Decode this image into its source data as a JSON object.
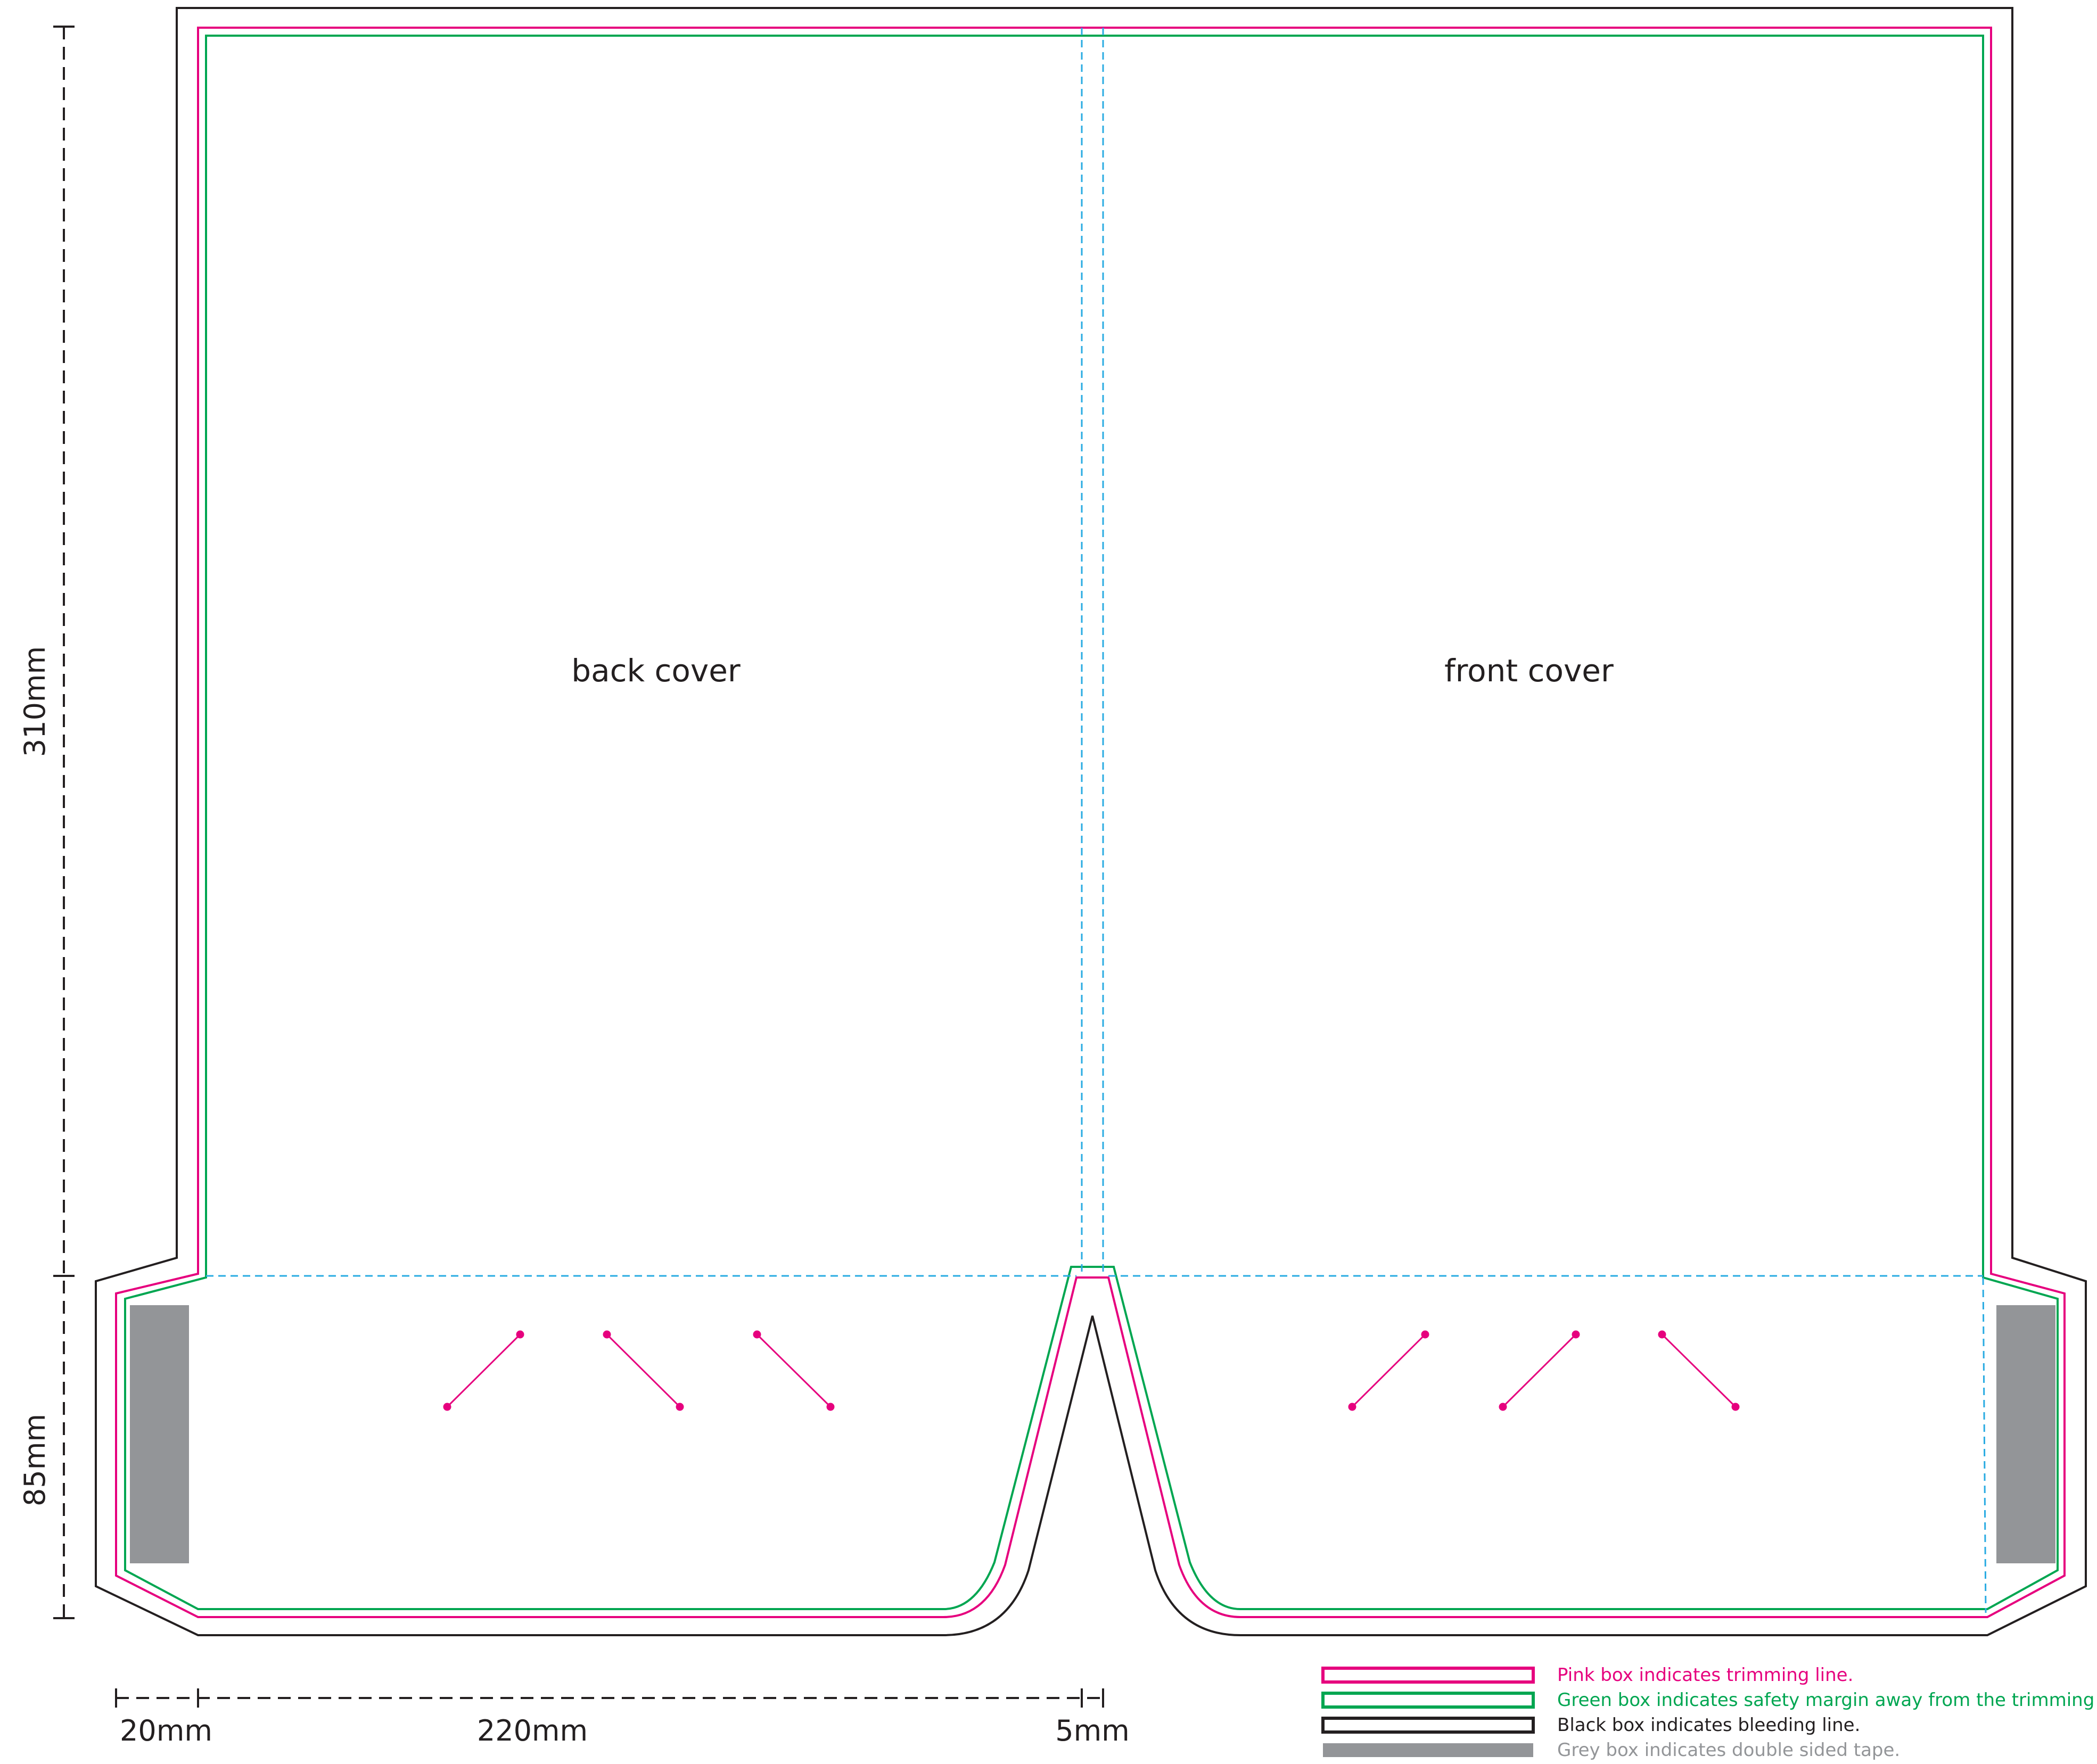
{
  "panels": {
    "back_cover": "back cover",
    "front_cover": "front cover"
  },
  "dimensions": {
    "height_main": "310mm",
    "height_pocket": "85mm",
    "width_flap": "20mm",
    "width_panel": "220mm",
    "width_spine": "5mm"
  },
  "legend": [
    {
      "text": "Pink box indicates trimming line.",
      "color": "#e6007e",
      "kind": "outline"
    },
    {
      "text": "Green box indicates safety margin away from the trimming line.",
      "color": "#00a651",
      "kind": "outline"
    },
    {
      "text": "Black box indicates bleeding line.",
      "color": "#231f20",
      "kind": "outline"
    },
    {
      "text": "Grey box indicates double sided tape.",
      "color": "#939598",
      "kind": "fill"
    }
  ],
  "colors": {
    "bleed": "#231f20",
    "trim": "#e6007e",
    "safety": "#00a651",
    "fold": "#29abe2",
    "tape": "#939598",
    "slit": "#e6007e"
  }
}
